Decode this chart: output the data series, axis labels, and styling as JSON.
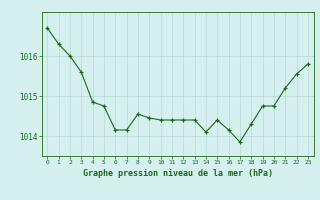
{
  "x": [
    0,
    1,
    2,
    3,
    4,
    5,
    6,
    7,
    8,
    9,
    10,
    11,
    12,
    13,
    14,
    15,
    16,
    17,
    18,
    19,
    20,
    21,
    22,
    23
  ],
  "y": [
    1016.7,
    1016.3,
    1016.0,
    1015.6,
    1014.85,
    1014.75,
    1014.15,
    1014.15,
    1014.55,
    1014.45,
    1014.4,
    1014.4,
    1014.4,
    1014.4,
    1014.1,
    1014.4,
    1014.15,
    1013.85,
    1014.3,
    1014.75,
    1014.75,
    1015.2,
    1015.55,
    1015.8
  ],
  "line_color": "#1a6b1a",
  "marker": "+",
  "background_color": "#d6f0f0",
  "grid_color": "#b8d8d8",
  "label_color": "#1a6b1a",
  "ylabel_ticks": [
    1014,
    1015,
    1016
  ],
  "xlabel": "Graphe pression niveau de la mer (hPa)",
  "ylim": [
    1013.5,
    1017.1
  ],
  "xlim": [
    -0.5,
    23.5
  ],
  "title": ""
}
